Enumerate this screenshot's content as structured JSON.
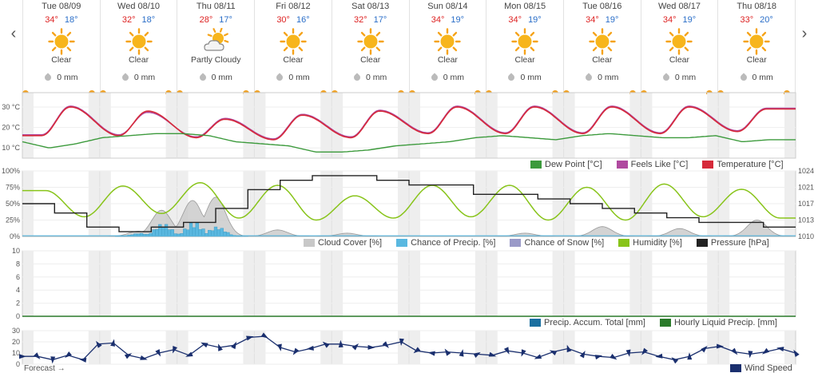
{
  "nav": {
    "prev": "‹",
    "next": "›"
  },
  "days": [
    {
      "date": "Tue 08/09",
      "hi": "34°",
      "lo": "18°",
      "icon": "sun-icon",
      "condition": "Clear",
      "precip": "0 mm"
    },
    {
      "date": "Wed 08/10",
      "hi": "32°",
      "lo": "18°",
      "icon": "sun-icon",
      "condition": "Clear",
      "precip": "0 mm"
    },
    {
      "date": "Thu 08/11",
      "hi": "28°",
      "lo": "17°",
      "icon": "partly-cloudy-icon",
      "condition": "Partly Cloudy",
      "precip": "0 mm"
    },
    {
      "date": "Fri 08/12",
      "hi": "30°",
      "lo": "16°",
      "icon": "sun-icon",
      "condition": "Clear",
      "precip": "0 mm"
    },
    {
      "date": "Sat 08/13",
      "hi": "32°",
      "lo": "17°",
      "icon": "sun-icon",
      "condition": "Clear",
      "precip": "0 mm"
    },
    {
      "date": "Sun 08/14",
      "hi": "34°",
      "lo": "19°",
      "icon": "sun-icon",
      "condition": "Clear",
      "precip": "0 mm"
    },
    {
      "date": "Mon 08/15",
      "hi": "34°",
      "lo": "19°",
      "icon": "sun-icon",
      "condition": "Clear",
      "precip": "0 mm"
    },
    {
      "date": "Tue 08/16",
      "hi": "34°",
      "lo": "19°",
      "icon": "sun-icon",
      "condition": "Clear",
      "precip": "0 mm"
    },
    {
      "date": "Wed 08/17",
      "hi": "34°",
      "lo": "19°",
      "icon": "sun-icon",
      "condition": "Clear",
      "precip": "0 mm"
    },
    {
      "date": "Thu 08/18",
      "hi": "33°",
      "lo": "20°",
      "icon": "sun-icon",
      "condition": "Clear",
      "precip": "0 mm"
    }
  ],
  "colors": {
    "temperature": "#d62a3a",
    "feels_like": "#b04aa0",
    "dew_point": "#3c9a3c",
    "cloud": "#c8c8c8",
    "precip_chance": "#5ab8e0",
    "snow_chance": "#9a9ac8",
    "humidity": "#88c41a",
    "pressure": "#222222",
    "accum": "#1a6fa0",
    "hourly_precip": "#2a7a2a",
    "wind": "#1a2f6e",
    "night": "#eeeeee"
  },
  "legends": {
    "temp": [
      "Dew Point [°C]",
      "Feels Like [°C]",
      "Temperature [°C]"
    ],
    "atmo": [
      "Cloud Cover [%]",
      "Chance of Precip. [%]",
      "Chance of Snow [%]",
      "Humidity [%]",
      "Pressure [hPa]"
    ],
    "precip": [
      "Precip. Accum. Total [mm]",
      "Hourly Liquid Precip. [mm]"
    ],
    "wind": [
      "Wind Speed"
    ]
  },
  "footer": {
    "forecast_link": "Forecast →"
  },
  "chart_data": [
    {
      "type": "line",
      "x_label": "",
      "y_ticks": [
        "30 °C",
        "20 °C",
        "10 °C"
      ],
      "ylim": [
        5,
        37
      ],
      "series": [
        {
          "name": "Temperature [°C]",
          "daily_max": [
            34,
            32,
            28,
            30,
            32,
            34,
            34,
            34,
            34,
            33
          ],
          "daily_min": [
            18,
            18,
            17,
            16,
            17,
            19,
            19,
            19,
            19,
            20
          ]
        },
        {
          "name": "Feels Like [°C]",
          "daily_max": [
            34,
            31,
            28,
            30,
            32,
            34,
            34,
            34,
            34,
            33
          ],
          "daily_min": [
            18,
            18,
            17,
            16,
            17,
            19,
            19,
            19,
            19,
            20
          ]
        },
        {
          "name": "Dew Point [°C]",
          "values": [
            13,
            10,
            12,
            15,
            16,
            17,
            17,
            16,
            13,
            12,
            11,
            8,
            8,
            9,
            11,
            12,
            13,
            15,
            16,
            15,
            14,
            16,
            17,
            16,
            15,
            15,
            16,
            13,
            14,
            14
          ]
        }
      ]
    },
    {
      "type": "line",
      "y_ticks": [
        "100%",
        "75%",
        "50%",
        "25%",
        "0%"
      ],
      "y2_ticks": [
        "1024",
        "1021",
        "1017",
        "1013",
        "1010"
      ],
      "series": [
        {
          "name": "Humidity [%]",
          "daily_max": [
            70,
            77,
            82,
            78,
            62,
            78,
            78,
            75,
            80,
            72
          ],
          "daily_min": [
            30,
            35,
            28,
            25,
            28,
            30,
            25,
            25,
            30,
            28
          ]
        },
        {
          "name": "Pressure [hPa]",
          "values": [
            1017,
            1015,
            1012,
            1011,
            1012,
            1013,
            1016,
            1020,
            1022,
            1023,
            1023,
            1022,
            1021,
            1021,
            1019,
            1019,
            1018,
            1017,
            1016,
            1015,
            1014,
            1013,
            1013,
            1012
          ]
        },
        {
          "name": "Cloud Cover [%]",
          "peaks": [
            [
              1.5,
              8
            ],
            [
              1.8,
              40
            ],
            [
              2.2,
              55
            ],
            [
              2.5,
              60
            ],
            [
              3.3,
              10
            ],
            [
              4.2,
              5
            ],
            [
              6.5,
              5
            ],
            [
              7.5,
              15
            ],
            [
              8.5,
              12
            ],
            [
              9.5,
              25
            ]
          ]
        },
        {
          "name": "Chance of Precip. [%]",
          "peaks": [
            [
              1.5,
              5
            ],
            [
              1.8,
              20
            ],
            [
              2.2,
              22
            ],
            [
              2.5,
              15
            ]
          ]
        },
        {
          "name": "Chance of Snow [%]",
          "peaks": []
        }
      ]
    },
    {
      "type": "line",
      "y_ticks": [
        "10",
        "8",
        "6",
        "4",
        "2",
        "0"
      ],
      "ylim": [
        0,
        10
      ],
      "series": [
        {
          "name": "Precip. Accum. Total [mm]",
          "values": [
            0
          ]
        },
        {
          "name": "Hourly Liquid Precip. [mm]",
          "values": [
            0
          ]
        }
      ]
    },
    {
      "type": "line",
      "y_ticks": [
        "30",
        "20",
        "10",
        "0"
      ],
      "ylim": [
        0,
        30
      ],
      "series": [
        {
          "name": "Wind Speed",
          "values": [
            7,
            7,
            4,
            8,
            4,
            18,
            19,
            8,
            5,
            10,
            13,
            8,
            18,
            15,
            17,
            24,
            25,
            15,
            11,
            14,
            18,
            18,
            16,
            15,
            17,
            20,
            12,
            10,
            11,
            10,
            9,
            8,
            12,
            10,
            6,
            11,
            14,
            9,
            7,
            6,
            10,
            11,
            7,
            4,
            7,
            14,
            16,
            11,
            9,
            11,
            14,
            10
          ]
        }
      ]
    }
  ]
}
